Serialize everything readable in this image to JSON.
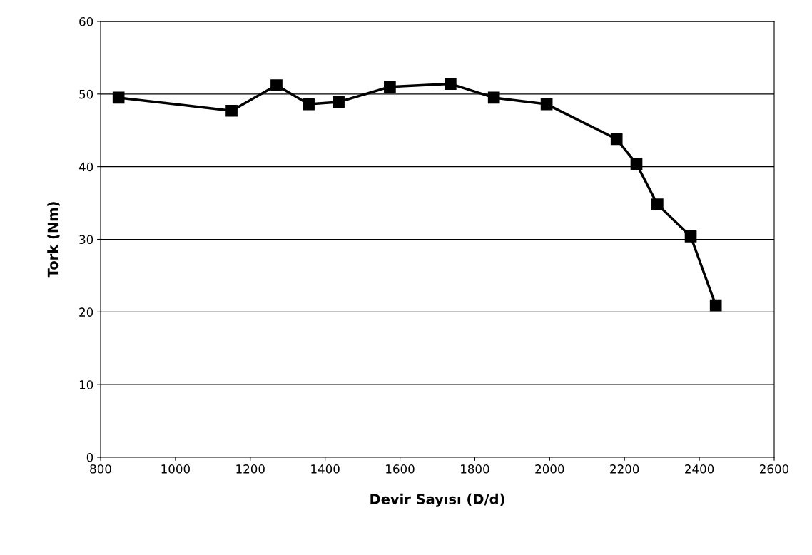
{
  "chart_data": {
    "type": "line",
    "xlabel": "Devir Sayısı (D/d)",
    "ylabel": "Tork (Nm)",
    "x": [
      848,
      1150,
      1270,
      1356,
      1436,
      1573,
      1735,
      1851,
      1992,
      2179,
      2232,
      2288,
      2377,
      2444
    ],
    "series": [
      {
        "color": "#000000",
        "values": [
          49.5,
          47.7,
          51.2,
          48.6,
          48.9,
          51.0,
          51.4,
          49.5,
          48.6,
          43.8,
          40.4,
          34.8,
          30.4,
          20.9
        ]
      }
    ],
    "xlim": [
      800,
      2600
    ],
    "xticks": [
      800,
      1000,
      1200,
      1400,
      1600,
      1800,
      2000,
      2200,
      2400,
      2600
    ],
    "ylim": [
      0,
      60
    ],
    "yticks": [
      0,
      10,
      20,
      30,
      40,
      50,
      60
    ],
    "grid": "y",
    "marker": "square",
    "line_style": "solid"
  }
}
